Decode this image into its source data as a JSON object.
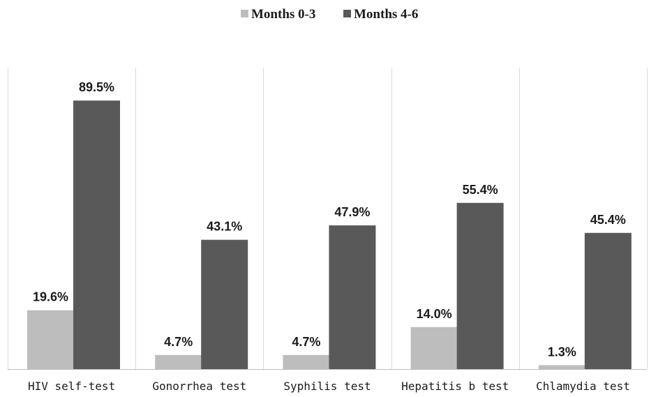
{
  "chart_data": {
    "type": "bar",
    "categories": [
      "HIV self-test",
      "Gonorrhea test",
      "Syphilis test",
      "Hepatitis b test",
      "Chlamydia test"
    ],
    "series": [
      {
        "name": "Months 0-3",
        "values": [
          19.6,
          4.7,
          4.7,
          14.0,
          1.3
        ],
        "labels": [
          "19.6%",
          "4.7%",
          "4.7%",
          "14.0%",
          "1.3%"
        ],
        "color": "#bdbdbd"
      },
      {
        "name": "Months 4-6",
        "values": [
          89.5,
          43.1,
          47.9,
          55.4,
          45.4
        ],
        "labels": [
          "89.5%",
          "43.1%",
          "47.9%",
          "55.4%",
          "45.4%"
        ],
        "color": "#595959"
      }
    ],
    "ylim": [
      0,
      100
    ],
    "grid": false,
    "legend": "top-center",
    "title": "",
    "xlabel": "",
    "ylabel": ""
  }
}
